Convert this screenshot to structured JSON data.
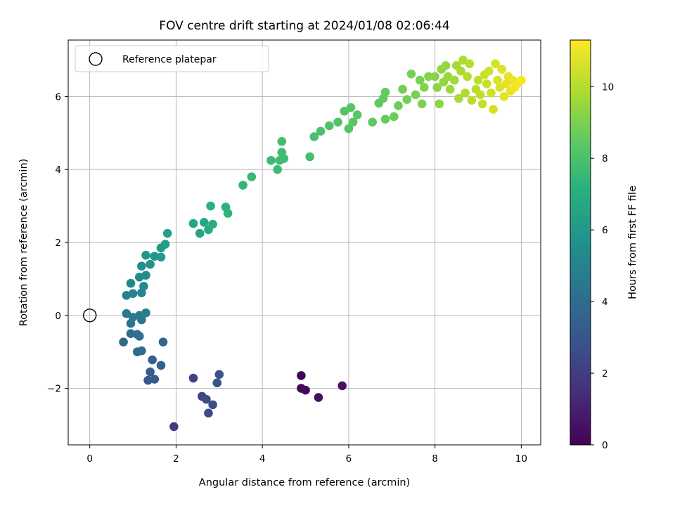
{
  "chart_data": {
    "type": "scatter",
    "title": "FOV centre drift starting at 2024/01/08 02:06:44",
    "xlabel": "Angular distance from reference (arcmin)",
    "ylabel": "Rotation from reference (arcmin)",
    "xlim": [
      -0.5,
      10.45
    ],
    "ylim": [
      -3.55,
      7.55
    ],
    "xticks": [
      0,
      2,
      4,
      6,
      8,
      10
    ],
    "yticks": [
      -2,
      0,
      2,
      4,
      6
    ],
    "xtick_labels": [
      "0",
      "2",
      "4",
      "6",
      "8",
      "10"
    ],
    "ytick_labels": [
      "−2",
      "0",
      "2",
      "4",
      "6"
    ],
    "grid": true,
    "legend_position": "upper-left",
    "colormap": "viridis",
    "colorbar": {
      "label": "Hours from first FF file",
      "range": [
        0,
        11.3
      ],
      "ticks": [
        0,
        2,
        4,
        6,
        8,
        10
      ],
      "tick_labels": [
        "0",
        "2",
        "4",
        "6",
        "8",
        "10"
      ]
    },
    "reference": {
      "name": "Reference platepar",
      "x": 0,
      "y": 0
    },
    "points": [
      {
        "x": 4.9,
        "y": -1.65,
        "t": 0.1
      },
      {
        "x": 4.9,
        "y": -2.0,
        "t": 0.2
      },
      {
        "x": 5.0,
        "y": -2.05,
        "t": 0.3
      },
      {
        "x": 5.3,
        "y": -2.25,
        "t": 0.4
      },
      {
        "x": 5.85,
        "y": -1.93,
        "t": 0.6
      },
      {
        "x": 1.95,
        "y": -3.05,
        "t": 1.9
      },
      {
        "x": 2.4,
        "y": -1.72,
        "t": 2.2
      },
      {
        "x": 2.6,
        "y": -2.22,
        "t": 2.4
      },
      {
        "x": 2.7,
        "y": -2.3,
        "t": 2.5
      },
      {
        "x": 2.75,
        "y": -2.68,
        "t": 2.6
      },
      {
        "x": 2.85,
        "y": -2.45,
        "t": 2.7
      },
      {
        "x": 2.95,
        "y": -1.85,
        "t": 2.8
      },
      {
        "x": 3.0,
        "y": -1.62,
        "t": 2.9
      },
      {
        "x": 1.35,
        "y": -1.78,
        "t": 3.1
      },
      {
        "x": 1.5,
        "y": -1.75,
        "t": 3.2
      },
      {
        "x": 1.4,
        "y": -1.55,
        "t": 3.3
      },
      {
        "x": 1.45,
        "y": -1.22,
        "t": 3.4
      },
      {
        "x": 1.65,
        "y": -1.37,
        "t": 3.5
      },
      {
        "x": 1.7,
        "y": -0.73,
        "t": 3.6
      },
      {
        "x": 0.78,
        "y": -0.73,
        "t": 3.7
      },
      {
        "x": 1.1,
        "y": -1.0,
        "t": 3.8
      },
      {
        "x": 1.2,
        "y": -0.97,
        "t": 3.9
      },
      {
        "x": 0.95,
        "y": -0.5,
        "t": 4.0
      },
      {
        "x": 1.1,
        "y": -0.52,
        "t": 4.1
      },
      {
        "x": 1.15,
        "y": -0.57,
        "t": 4.2
      },
      {
        "x": 0.95,
        "y": -0.22,
        "t": 4.3
      },
      {
        "x": 1.2,
        "y": -0.12,
        "t": 4.4
      },
      {
        "x": 0.85,
        "y": 0.05,
        "t": 4.5
      },
      {
        "x": 1.15,
        "y": 0.0,
        "t": 4.6
      },
      {
        "x": 1.0,
        "y": -0.05,
        "t": 4.7
      },
      {
        "x": 1.3,
        "y": 0.07,
        "t": 4.8
      },
      {
        "x": 0.85,
        "y": 0.55,
        "t": 4.9
      },
      {
        "x": 1.0,
        "y": 0.6,
        "t": 5.0
      },
      {
        "x": 1.2,
        "y": 0.62,
        "t": 5.1
      },
      {
        "x": 0.95,
        "y": 0.88,
        "t": 5.2
      },
      {
        "x": 1.25,
        "y": 0.8,
        "t": 5.3
      },
      {
        "x": 1.15,
        "y": 1.05,
        "t": 5.4
      },
      {
        "x": 1.3,
        "y": 1.1,
        "t": 5.5
      },
      {
        "x": 1.2,
        "y": 1.35,
        "t": 5.6
      },
      {
        "x": 1.4,
        "y": 1.4,
        "t": 5.7
      },
      {
        "x": 1.3,
        "y": 1.65,
        "t": 5.8
      },
      {
        "x": 1.5,
        "y": 1.62,
        "t": 5.9
      },
      {
        "x": 1.65,
        "y": 1.85,
        "t": 6.1
      },
      {
        "x": 1.65,
        "y": 1.6,
        "t": 6.2
      },
      {
        "x": 1.75,
        "y": 1.95,
        "t": 6.3
      },
      {
        "x": 1.8,
        "y": 2.25,
        "t": 6.4
      },
      {
        "x": 2.4,
        "y": 2.52,
        "t": 6.6
      },
      {
        "x": 2.55,
        "y": 2.25,
        "t": 6.7
      },
      {
        "x": 2.65,
        "y": 2.55,
        "t": 6.8
      },
      {
        "x": 2.75,
        "y": 2.35,
        "t": 6.9
      },
      {
        "x": 2.85,
        "y": 2.5,
        "t": 7.0
      },
      {
        "x": 2.8,
        "y": 3.0,
        "t": 7.1
      },
      {
        "x": 3.15,
        "y": 2.97,
        "t": 7.2
      },
      {
        "x": 3.2,
        "y": 2.8,
        "t": 7.25
      },
      {
        "x": 3.55,
        "y": 3.57,
        "t": 7.4
      },
      {
        "x": 3.75,
        "y": 3.8,
        "t": 7.5
      },
      {
        "x": 4.2,
        "y": 4.25,
        "t": 7.6
      },
      {
        "x": 4.35,
        "y": 4.0,
        "t": 7.65
      },
      {
        "x": 4.4,
        "y": 4.25,
        "t": 7.7
      },
      {
        "x": 4.45,
        "y": 4.47,
        "t": 7.75
      },
      {
        "x": 4.5,
        "y": 4.3,
        "t": 7.8
      },
      {
        "x": 4.45,
        "y": 4.77,
        "t": 7.85
      },
      {
        "x": 5.1,
        "y": 4.35,
        "t": 7.9
      },
      {
        "x": 5.2,
        "y": 4.9,
        "t": 8.0
      },
      {
        "x": 5.35,
        "y": 5.05,
        "t": 8.05
      },
      {
        "x": 5.55,
        "y": 5.2,
        "t": 8.1
      },
      {
        "x": 5.75,
        "y": 5.3,
        "t": 8.15
      },
      {
        "x": 5.9,
        "y": 5.6,
        "t": 8.2
      },
      {
        "x": 6.0,
        "y": 5.12,
        "t": 8.25
      },
      {
        "x": 6.05,
        "y": 5.7,
        "t": 8.3
      },
      {
        "x": 6.1,
        "y": 5.3,
        "t": 8.35
      },
      {
        "x": 6.2,
        "y": 5.5,
        "t": 8.4
      },
      {
        "x": 6.55,
        "y": 5.3,
        "t": 8.45
      },
      {
        "x": 6.7,
        "y": 5.82,
        "t": 8.5
      },
      {
        "x": 6.8,
        "y": 5.95,
        "t": 8.55
      },
      {
        "x": 6.85,
        "y": 6.12,
        "t": 8.6
      },
      {
        "x": 6.85,
        "y": 5.38,
        "t": 8.65
      },
      {
        "x": 7.05,
        "y": 5.45,
        "t": 8.7
      },
      {
        "x": 7.15,
        "y": 5.75,
        "t": 8.75
      },
      {
        "x": 7.25,
        "y": 6.2,
        "t": 8.85
      },
      {
        "x": 7.35,
        "y": 5.92,
        "t": 8.9
      },
      {
        "x": 7.45,
        "y": 6.62,
        "t": 8.95
      },
      {
        "x": 7.55,
        "y": 6.05,
        "t": 9.0
      },
      {
        "x": 7.65,
        "y": 6.45,
        "t": 9.05
      },
      {
        "x": 7.7,
        "y": 5.8,
        "t": 9.1
      },
      {
        "x": 7.75,
        "y": 6.25,
        "t": 9.15
      },
      {
        "x": 7.85,
        "y": 6.55,
        "t": 9.2
      },
      {
        "x": 8.0,
        "y": 6.55,
        "t": 9.25
      },
      {
        "x": 8.05,
        "y": 6.25,
        "t": 9.3
      },
      {
        "x": 8.1,
        "y": 5.8,
        "t": 9.35
      },
      {
        "x": 8.15,
        "y": 6.75,
        "t": 9.4
      },
      {
        "x": 8.2,
        "y": 6.4,
        "t": 9.45
      },
      {
        "x": 8.25,
        "y": 6.85,
        "t": 9.5
      },
      {
        "x": 8.3,
        "y": 6.55,
        "t": 9.55
      },
      {
        "x": 8.35,
        "y": 6.2,
        "t": 9.6
      },
      {
        "x": 8.45,
        "y": 6.45,
        "t": 9.7
      },
      {
        "x": 8.5,
        "y": 6.85,
        "t": 9.75
      },
      {
        "x": 8.55,
        "y": 5.95,
        "t": 9.8
      },
      {
        "x": 8.6,
        "y": 6.7,
        "t": 9.85
      },
      {
        "x": 8.65,
        "y": 7.0,
        "t": 9.9
      },
      {
        "x": 8.7,
        "y": 6.1,
        "t": 9.95
      },
      {
        "x": 8.75,
        "y": 6.55,
        "t": 10.0
      },
      {
        "x": 8.8,
        "y": 6.9,
        "t": 10.05
      },
      {
        "x": 8.85,
        "y": 5.9,
        "t": 10.1
      },
      {
        "x": 8.95,
        "y": 6.2,
        "t": 10.15
      },
      {
        "x": 9.0,
        "y": 6.45,
        "t": 10.2
      },
      {
        "x": 9.05,
        "y": 6.05,
        "t": 10.25
      },
      {
        "x": 9.1,
        "y": 5.8,
        "t": 10.3
      },
      {
        "x": 9.15,
        "y": 6.6,
        "t": 10.35
      },
      {
        "x": 9.2,
        "y": 6.35,
        "t": 10.4
      },
      {
        "x": 9.25,
        "y": 6.7,
        "t": 10.45
      },
      {
        "x": 9.3,
        "y": 6.1,
        "t": 10.5
      },
      {
        "x": 9.35,
        "y": 5.65,
        "t": 10.55
      },
      {
        "x": 9.4,
        "y": 6.9,
        "t": 10.6
      },
      {
        "x": 9.45,
        "y": 6.45,
        "t": 10.65
      },
      {
        "x": 9.5,
        "y": 6.25,
        "t": 10.7
      },
      {
        "x": 9.55,
        "y": 6.75,
        "t": 10.75
      },
      {
        "x": 9.6,
        "y": 6.0,
        "t": 10.8
      },
      {
        "x": 9.65,
        "y": 6.35,
        "t": 10.85
      },
      {
        "x": 9.7,
        "y": 6.55,
        "t": 10.9
      },
      {
        "x": 9.75,
        "y": 6.15,
        "t": 10.95
      },
      {
        "x": 9.8,
        "y": 6.45,
        "t": 11.0
      },
      {
        "x": 9.85,
        "y": 6.25,
        "t": 11.05
      },
      {
        "x": 9.9,
        "y": 6.35,
        "t": 11.1
      },
      {
        "x": 9.95,
        "y": 6.4,
        "t": 11.15
      },
      {
        "x": 10.0,
        "y": 6.45,
        "t": 11.2
      }
    ]
  }
}
